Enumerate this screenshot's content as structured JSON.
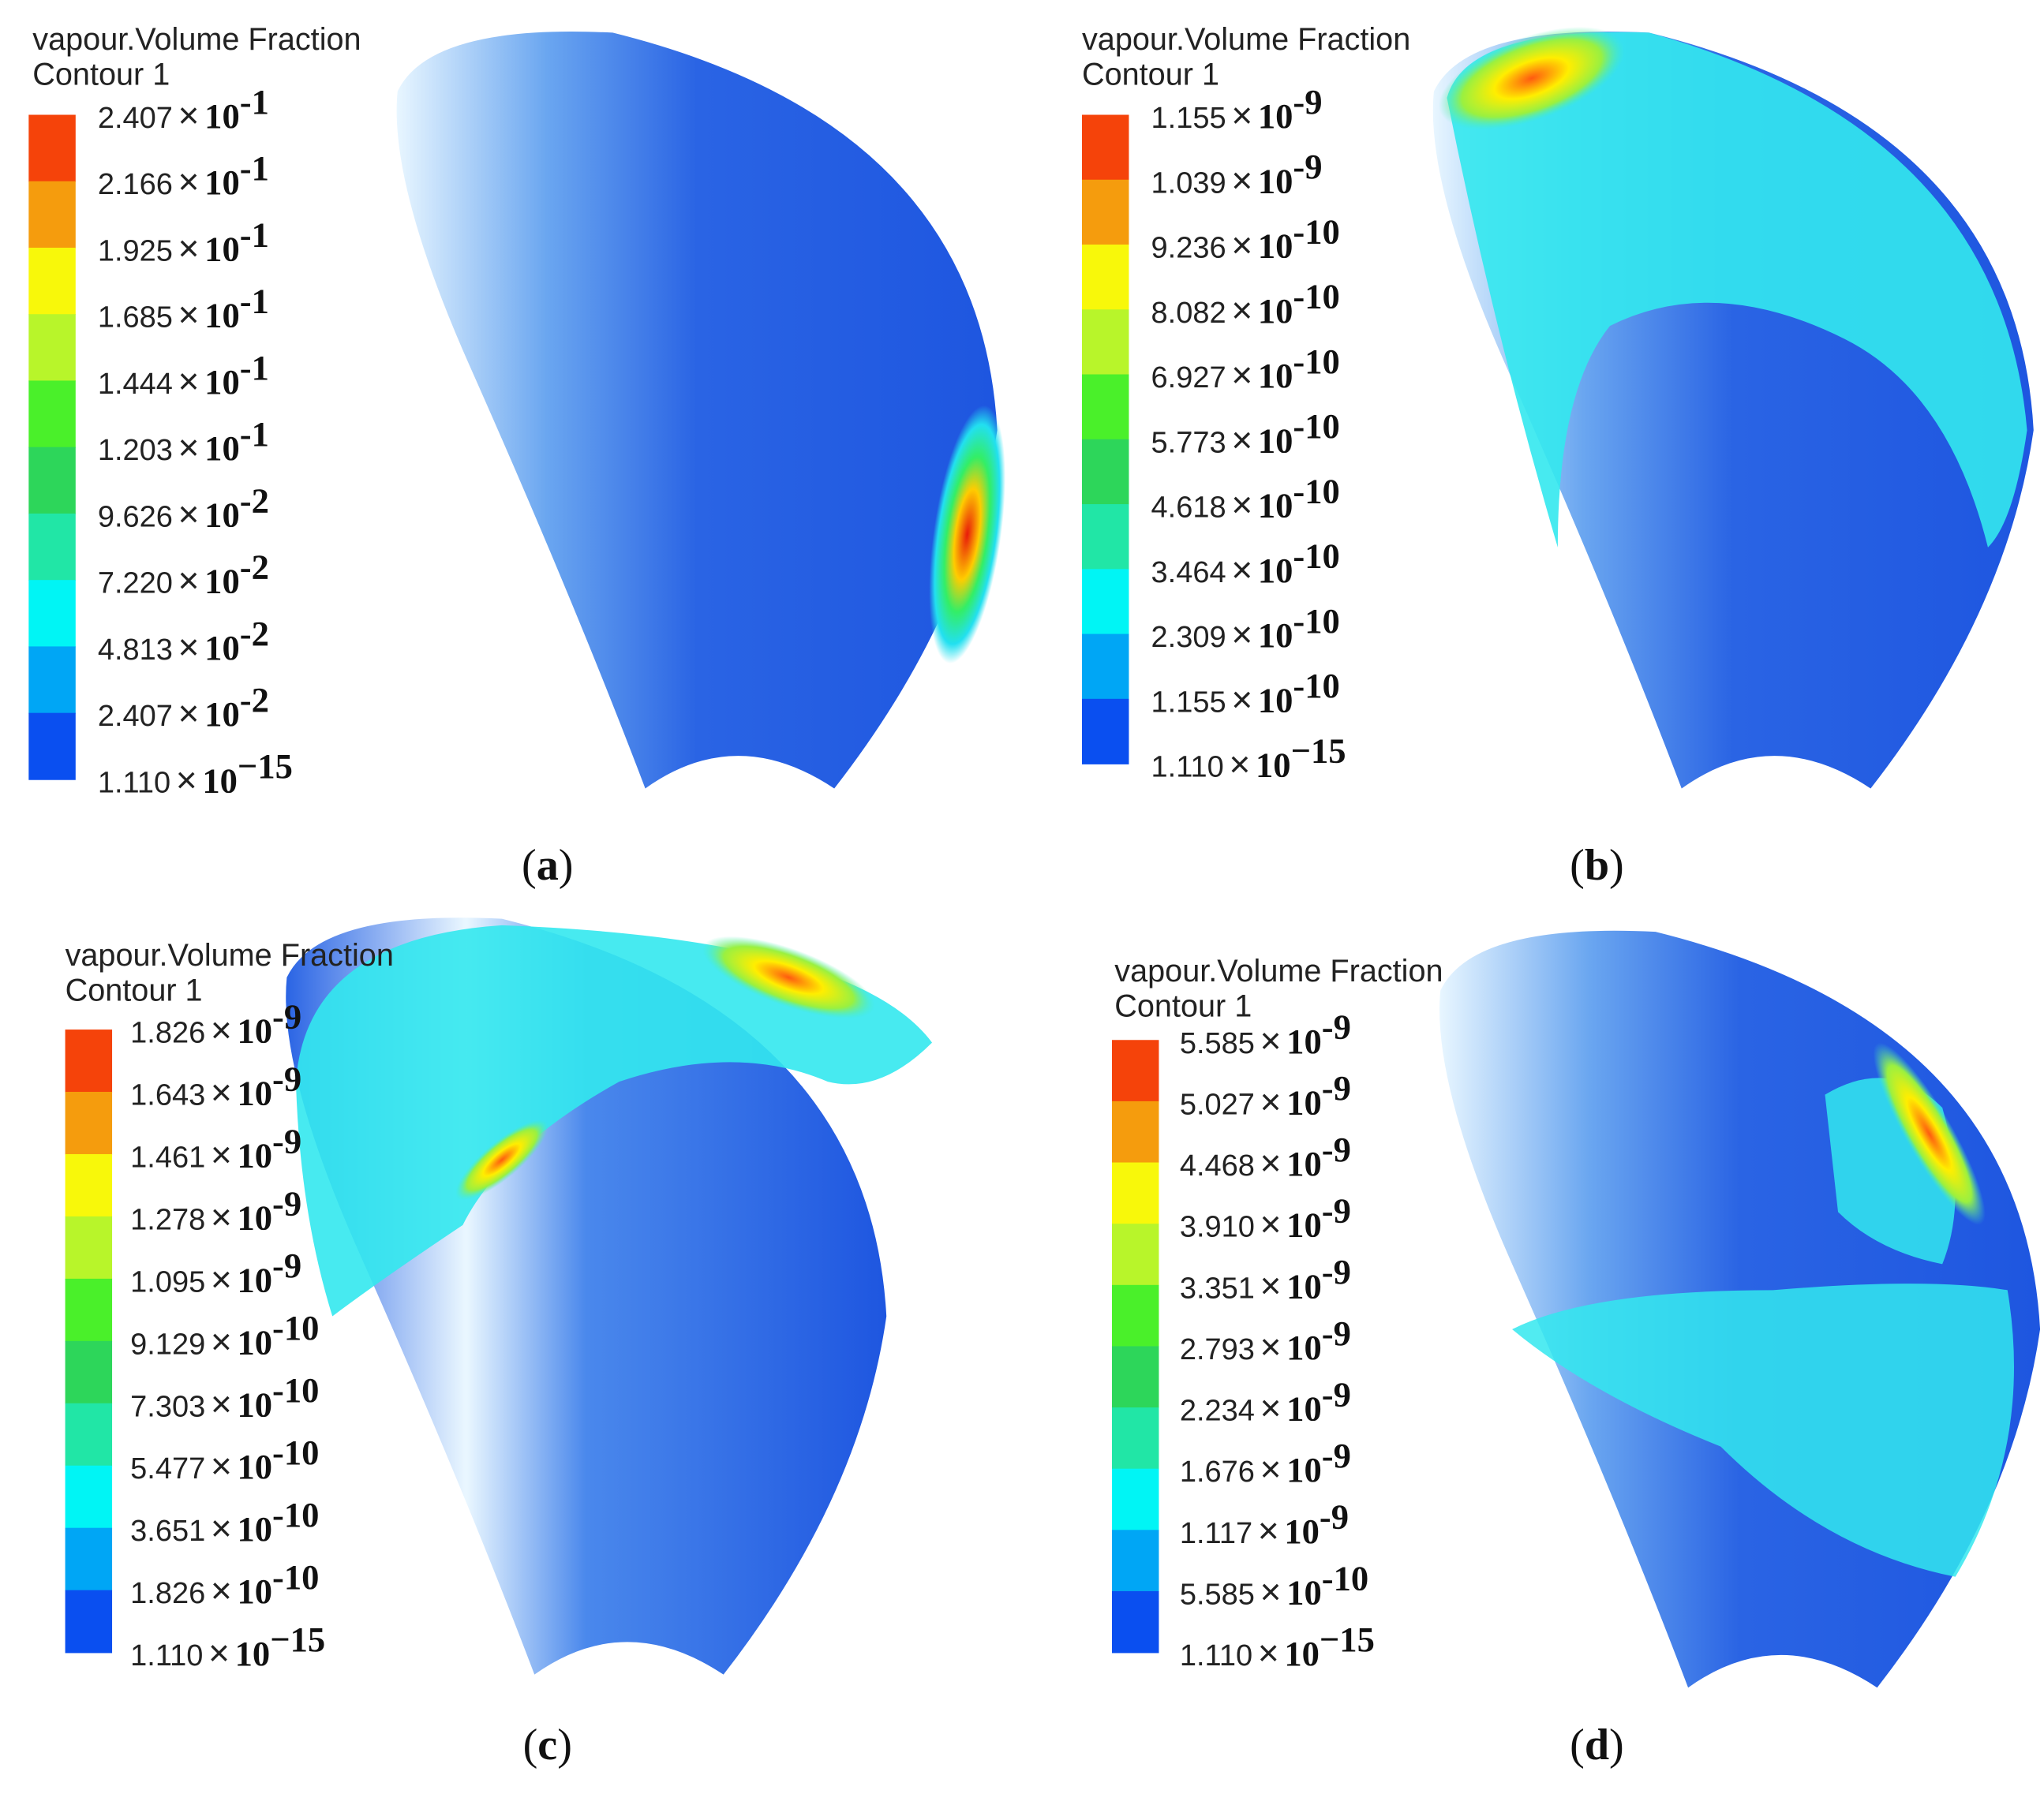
{
  "times": "×",
  "base": "10",
  "panels": [
    {
      "caption": "a",
      "title": "vapour.Volume Fraction",
      "subtitle": "Contour 1",
      "legend": [
        {
          "mantissa": "2.407",
          "exponent": "-1"
        },
        {
          "mantissa": "2.166",
          "exponent": "-1"
        },
        {
          "mantissa": "1.925",
          "exponent": "-1"
        },
        {
          "mantissa": "1.685",
          "exponent": "-1"
        },
        {
          "mantissa": "1.444",
          "exponent": "-1"
        },
        {
          "mantissa": "1.203",
          "exponent": "-1"
        },
        {
          "mantissa": "9.626",
          "exponent": "-2"
        },
        {
          "mantissa": "7.220",
          "exponent": "-2"
        },
        {
          "mantissa": "4.813",
          "exponent": "-2"
        },
        {
          "mantissa": "2.407",
          "exponent": "-2"
        },
        {
          "mantissa": "1.110",
          "exponent": "−15"
        }
      ]
    },
    {
      "caption": "b",
      "title": "vapour.Volume Fraction",
      "subtitle": "Contour 1",
      "legend": [
        {
          "mantissa": "1.155",
          "exponent": "-9"
        },
        {
          "mantissa": "1.039",
          "exponent": "-9"
        },
        {
          "mantissa": "9.236",
          "exponent": "-10"
        },
        {
          "mantissa": "8.082",
          "exponent": "-10"
        },
        {
          "mantissa": "6.927",
          "exponent": "-10"
        },
        {
          "mantissa": "5.773",
          "exponent": "-10"
        },
        {
          "mantissa": "4.618",
          "exponent": "-10"
        },
        {
          "mantissa": "3.464",
          "exponent": "-10"
        },
        {
          "mantissa": "2.309",
          "exponent": "-10"
        },
        {
          "mantissa": "1.155",
          "exponent": "-10"
        },
        {
          "mantissa": "1.110",
          "exponent": "−15"
        }
      ]
    },
    {
      "caption": "c",
      "title": "vapour.Volume Fraction",
      "subtitle": "Contour 1",
      "legend": [
        {
          "mantissa": "1.826",
          "exponent": "-9"
        },
        {
          "mantissa": "1.643",
          "exponent": "-9"
        },
        {
          "mantissa": "1.461",
          "exponent": "-9"
        },
        {
          "mantissa": "1.278",
          "exponent": "-9"
        },
        {
          "mantissa": "1.095",
          "exponent": "-9"
        },
        {
          "mantissa": "9.129",
          "exponent": "-10"
        },
        {
          "mantissa": "7.303",
          "exponent": "-10"
        },
        {
          "mantissa": "5.477",
          "exponent": "-10"
        },
        {
          "mantissa": "3.651",
          "exponent": "-10"
        },
        {
          "mantissa": "1.826",
          "exponent": "-10"
        },
        {
          "mantissa": "1.110",
          "exponent": "−15"
        }
      ]
    },
    {
      "caption": "d",
      "title": "vapour.Volume Fraction",
      "subtitle": "Contour 1",
      "legend": [
        {
          "mantissa": "5.585",
          "exponent": "-9"
        },
        {
          "mantissa": "5.027",
          "exponent": "-9"
        },
        {
          "mantissa": "4.468",
          "exponent": "-9"
        },
        {
          "mantissa": "3.910",
          "exponent": "-9"
        },
        {
          "mantissa": "3.351",
          "exponent": "-9"
        },
        {
          "mantissa": "2.793",
          "exponent": "-9"
        },
        {
          "mantissa": "2.234",
          "exponent": "-9"
        },
        {
          "mantissa": "1.676",
          "exponent": "-9"
        },
        {
          "mantissa": "1.117",
          "exponent": "-9"
        },
        {
          "mantissa": "5.585",
          "exponent": "-10"
        },
        {
          "mantissa": "1.110",
          "exponent": "−15"
        }
      ]
    }
  ]
}
